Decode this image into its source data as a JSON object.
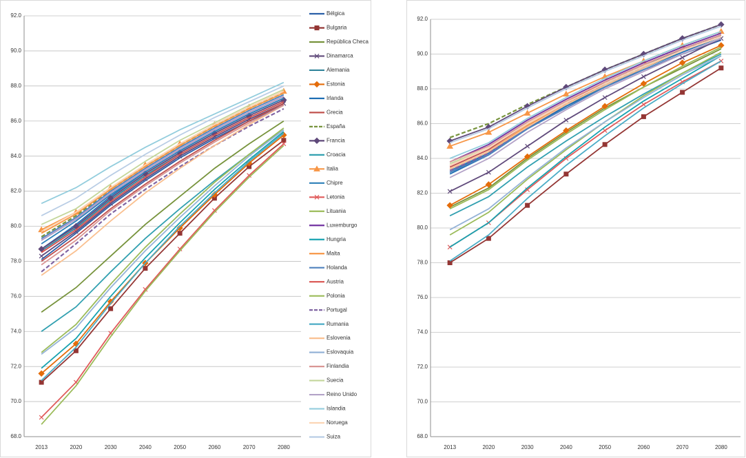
{
  "chart_data": [
    {
      "type": "line",
      "legend": "right",
      "grid": true,
      "categories": [
        "2013",
        "2020",
        "2030",
        "2040",
        "2050",
        "2060",
        "2070",
        "2080"
      ],
      "ylim": [
        68,
        92
      ],
      "yticks": [
        {
          "value": 68,
          "label": "68.0"
        },
        {
          "value": 70,
          "label": "70.0"
        },
        {
          "value": 72,
          "label": "72.0"
        },
        {
          "value": 74,
          "label": "74.0"
        },
        {
          "value": 76,
          "label": "76.0"
        },
        {
          "value": 78,
          "label": "78.0"
        },
        {
          "value": 80,
          "label": "80.0"
        },
        {
          "value": 82,
          "label": "82.0"
        },
        {
          "value": 84,
          "label": "84.0"
        },
        {
          "value": 86,
          "label": "86.0"
        },
        {
          "value": 88,
          "label": "88.0"
        },
        {
          "value": 90,
          "label": "90.0"
        },
        {
          "value": 92,
          "label": "92.0"
        }
      ],
      "series": [
        {
          "name": "Bélgica",
          "color": "#2a5fa8",
          "values": [
            78.1,
            79.6,
            81.2,
            82.6,
            83.9,
            85.0,
            86.0,
            86.9
          ]
        },
        {
          "name": "Bulgaria",
          "color": "#943634",
          "marker": "square",
          "values": [
            71.1,
            72.9,
            75.3,
            77.6,
            79.6,
            81.6,
            83.4,
            84.9
          ]
        },
        {
          "name": "República Checa",
          "color": "#77933c",
          "values": [
            75.1,
            76.5,
            78.3,
            80.1,
            81.7,
            83.3,
            84.7,
            86.0
          ]
        },
        {
          "name": "Dinamarca",
          "color": "#604a7b",
          "marker": "x",
          "values": [
            78.3,
            79.7,
            81.3,
            82.7,
            84.0,
            85.1,
            86.1,
            87.0
          ]
        },
        {
          "name": "Alemania",
          "color": "#31849b",
          "values": [
            78.6,
            79.9,
            81.5,
            82.9,
            84.1,
            85.2,
            86.2,
            87.1
          ]
        },
        {
          "name": "Estonia",
          "color": "#e46c0a",
          "marker": "diamond",
          "values": [
            71.6,
            73.3,
            75.7,
            77.9,
            79.9,
            81.8,
            83.6,
            85.2
          ]
        },
        {
          "name": "Irlanda",
          "color": "#1f6fb4",
          "values": [
            78.7,
            80.1,
            81.7,
            83.1,
            84.3,
            85.4,
            86.4,
            87.3
          ]
        },
        {
          "name": "Grecia",
          "color": "#c0504d",
          "values": [
            78.0,
            79.4,
            81.0,
            82.4,
            83.7,
            84.9,
            86.0,
            87.0
          ]
        },
        {
          "name": "España",
          "color": "#77933c",
          "dash": true,
          "values": [
            79.4,
            80.6,
            82.1,
            83.4,
            84.6,
            85.7,
            86.7,
            87.6
          ]
        },
        {
          "name": "Francia",
          "color": "#5f497a",
          "marker": "diamond",
          "values": [
            78.7,
            80.0,
            81.6,
            83.0,
            84.2,
            85.3,
            86.3,
            87.2
          ]
        },
        {
          "name": "Croacia",
          "color": "#31a0b0",
          "values": [
            74.0,
            75.4,
            77.4,
            79.3,
            81.0,
            82.6,
            84.1,
            85.5
          ]
        },
        {
          "name": "Italia",
          "color": "#f79646",
          "marker": "triangle",
          "values": [
            79.8,
            80.8,
            82.2,
            83.5,
            84.7,
            85.8,
            86.8,
            87.7
          ]
        },
        {
          "name": "Chipre",
          "color": "#2c7fb8",
          "values": [
            79.0,
            80.3,
            81.8,
            83.1,
            84.3,
            85.4,
            86.4,
            87.3
          ]
        },
        {
          "name": "Letonia",
          "color": "#e05a5a",
          "marker": "x",
          "values": [
            69.1,
            71.1,
            73.9,
            76.4,
            78.7,
            80.9,
            82.9,
            84.7
          ]
        },
        {
          "name": "Lituania",
          "color": "#9bbb59",
          "values": [
            68.7,
            70.9,
            73.7,
            76.3,
            78.6,
            80.8,
            82.8,
            84.6
          ]
        },
        {
          "name": "Luxemburgo",
          "color": "#7030a0",
          "values": [
            79.2,
            80.4,
            81.9,
            83.2,
            84.4,
            85.5,
            86.5,
            87.4
          ]
        },
        {
          "name": "Hungria",
          "color": "#17a2b0",
          "values": [
            71.9,
            73.6,
            76.0,
            78.2,
            80.2,
            82.1,
            83.8,
            85.4
          ]
        },
        {
          "name": "Malta",
          "color": "#f79646",
          "values": [
            79.6,
            80.7,
            82.1,
            83.4,
            84.6,
            85.7,
            86.7,
            87.6
          ]
        },
        {
          "name": "Holanda",
          "color": "#4f81bd",
          "values": [
            79.3,
            80.5,
            82.0,
            83.3,
            84.5,
            85.6,
            86.6,
            87.5
          ]
        },
        {
          "name": "Austria",
          "color": "#d9534f",
          "values": [
            78.5,
            79.8,
            81.4,
            82.8,
            84.1,
            85.2,
            86.2,
            87.1
          ]
        },
        {
          "name": "Polonia",
          "color": "#9bbb59",
          "values": [
            72.8,
            74.4,
            76.7,
            78.8,
            80.7,
            82.5,
            84.1,
            85.6
          ]
        },
        {
          "name": "Portugal",
          "color": "#8064a2",
          "dash": true,
          "values": [
            77.4,
            79.0,
            80.7,
            82.1,
            83.4,
            84.6,
            85.7,
            86.7
          ]
        },
        {
          "name": "Rumania",
          "color": "#4bacc6",
          "values": [
            71.2,
            73.1,
            75.6,
            77.9,
            80.0,
            81.9,
            83.7,
            85.3
          ]
        },
        {
          "name": "Eslovenia",
          "color": "#fac090",
          "values": [
            77.2,
            78.6,
            80.3,
            81.9,
            83.3,
            84.6,
            85.8,
            86.9
          ]
        },
        {
          "name": "Eslovaquia",
          "color": "#95b3d7",
          "values": [
            72.7,
            74.2,
            76.5,
            78.6,
            80.5,
            82.3,
            84.0,
            85.5
          ]
        },
        {
          "name": "Finlandia",
          "color": "#d99694",
          "values": [
            77.8,
            79.2,
            80.9,
            82.3,
            83.6,
            84.8,
            85.9,
            86.9
          ]
        },
        {
          "name": "Suecia",
          "color": "#c3d69b",
          "values": [
            80.1,
            81.0,
            82.4,
            83.7,
            84.9,
            85.9,
            86.9,
            87.8
          ]
        },
        {
          "name": "Reino Unido",
          "color": "#b3a2c7",
          "values": [
            79.2,
            80.4,
            81.9,
            83.2,
            84.4,
            85.5,
            86.5,
            87.4
          ]
        },
        {
          "name": "Islandia",
          "color": "#93cddd",
          "values": [
            81.3,
            82.2,
            83.4,
            84.5,
            85.5,
            86.4,
            87.3,
            88.2
          ]
        },
        {
          "name": "Noruega",
          "color": "#fcd5b5",
          "values": [
            79.7,
            80.8,
            82.2,
            83.5,
            84.7,
            85.8,
            86.8,
            87.7
          ]
        },
        {
          "name": "Suiza",
          "color": "#b9cde5",
          "values": [
            80.6,
            81.6,
            82.9,
            84.1,
            85.2,
            86.2,
            87.1,
            88.0
          ]
        }
      ]
    },
    {
      "type": "line",
      "grid": true,
      "categories": [
        "2013",
        "2020",
        "2030",
        "2040",
        "2050",
        "2060",
        "2070",
        "2080"
      ],
      "ylim": [
        68,
        92
      ],
      "yticks": [
        {
          "value": 68,
          "label": "68.0"
        },
        {
          "value": 70,
          "label": "70.0"
        },
        {
          "value": 72,
          "label": "72.0"
        },
        {
          "value": 74,
          "label": "74.0"
        },
        {
          "value": 76,
          "label": "76.0"
        },
        {
          "value": 78,
          "label": "78.0"
        },
        {
          "value": 80,
          "label": "80.0"
        },
        {
          "value": 82,
          "label": "82.0"
        },
        {
          "value": 84,
          "label": "84.0"
        },
        {
          "value": 86,
          "label": "86.0"
        },
        {
          "value": 88,
          "label": "88.0"
        },
        {
          "value": 90,
          "label": "90.0"
        },
        {
          "value": 92,
          "label": "92.0"
        }
      ],
      "series": [
        {
          "color": "#2a5fa8",
          "values": [
            83.2,
            84.3,
            85.8,
            87.0,
            88.1,
            89.1,
            90.0,
            90.8
          ]
        },
        {
          "color": "#943634",
          "marker": "square",
          "values": [
            78.0,
            79.4,
            81.3,
            83.1,
            84.8,
            86.4,
            87.8,
            89.2
          ]
        },
        {
          "color": "#77933c",
          "values": [
            81.2,
            82.3,
            84.0,
            85.5,
            86.9,
            88.1,
            89.2,
            90.3
          ]
        },
        {
          "color": "#604a7b",
          "marker": "x",
          "values": [
            82.1,
            83.2,
            84.7,
            86.2,
            87.5,
            88.7,
            89.8,
            90.9
          ]
        },
        {
          "color": "#31849b",
          "values": [
            83.2,
            84.2,
            85.7,
            87.0,
            88.2,
            89.2,
            90.2,
            91.0
          ]
        },
        {
          "color": "#e46c0a",
          "marker": "diamond",
          "values": [
            81.3,
            82.5,
            84.1,
            85.6,
            87.0,
            88.3,
            89.5,
            90.5
          ]
        },
        {
          "color": "#1f6fb4",
          "values": [
            83.1,
            84.2,
            85.7,
            87.0,
            88.1,
            89.2,
            90.1,
            91.0
          ]
        },
        {
          "color": "#c0504d",
          "values": [
            83.5,
            84.5,
            86.0,
            87.2,
            88.3,
            89.3,
            90.2,
            91.0
          ]
        },
        {
          "color": "#77933c",
          "dash": true,
          "values": [
            85.2,
            86.0,
            87.1,
            88.1,
            89.1,
            90.0,
            90.9,
            91.7
          ]
        },
        {
          "color": "#5f497a",
          "marker": "diamond",
          "values": [
            85.0,
            85.8,
            87.0,
            88.1,
            89.1,
            90.0,
            90.9,
            91.7
          ]
        },
        {
          "color": "#31a0b0",
          "values": [
            80.7,
            81.8,
            83.5,
            85.0,
            86.4,
            87.7,
            88.9,
            90.0
          ]
        },
        {
          "color": "#f79646",
          "marker": "triangle",
          "values": [
            84.7,
            85.5,
            86.6,
            87.7,
            88.7,
            89.6,
            90.5,
            91.3
          ]
        },
        {
          "color": "#2c7fb8",
          "values": [
            83.3,
            84.3,
            85.8,
            87.1,
            88.3,
            89.3,
            90.3,
            91.1
          ]
        },
        {
          "color": "#e05a5a",
          "marker": "x",
          "values": [
            78.9,
            80.3,
            82.2,
            84.0,
            85.6,
            87.1,
            88.4,
            89.6
          ]
        },
        {
          "color": "#9bbb59",
          "values": [
            79.6,
            80.9,
            82.8,
            84.5,
            86.1,
            87.6,
            88.9,
            90.1
          ]
        },
        {
          "color": "#7030a0",
          "values": [
            83.8,
            84.8,
            86.2,
            87.4,
            88.5,
            89.5,
            90.4,
            91.2
          ]
        },
        {
          "color": "#17a2b0",
          "values": [
            78.9,
            80.3,
            82.3,
            84.1,
            85.8,
            87.3,
            88.6,
            89.9
          ]
        },
        {
          "color": "#f79646",
          "values": [
            83.4,
            84.4,
            85.9,
            87.1,
            88.3,
            89.3,
            90.2,
            91.0
          ]
        },
        {
          "color": "#4f81bd",
          "values": [
            83.2,
            84.2,
            85.7,
            86.9,
            88.1,
            89.1,
            90.0,
            90.9
          ]
        },
        {
          "color": "#d9534f",
          "values": [
            83.6,
            84.6,
            86.0,
            87.2,
            88.4,
            89.4,
            90.3,
            91.1
          ]
        },
        {
          "color": "#9bbb59",
          "values": [
            81.1,
            82.2,
            83.9,
            85.4,
            86.8,
            88.1,
            89.3,
            90.4
          ]
        },
        {
          "color": "#8064a2",
          "dash": true,
          "values": [
            83.3,
            84.3,
            85.8,
            87.1,
            88.3,
            89.3,
            90.2,
            91.0
          ]
        },
        {
          "color": "#4bacc6",
          "values": [
            78.1,
            79.6,
            81.7,
            83.6,
            85.3,
            86.9,
            88.3,
            89.6
          ]
        },
        {
          "color": "#fac090",
          "values": [
            83.4,
            84.4,
            85.8,
            87.1,
            88.2,
            89.2,
            90.2,
            91.0
          ]
        },
        {
          "color": "#95b3d7",
          "values": [
            79.9,
            81.1,
            82.9,
            84.6,
            86.1,
            87.5,
            88.8,
            89.9
          ]
        },
        {
          "color": "#d99694",
          "values": [
            83.8,
            84.7,
            86.1,
            87.3,
            88.4,
            89.4,
            90.3,
            91.1
          ]
        },
        {
          "color": "#c3d69b",
          "values": [
            83.7,
            84.6,
            86.0,
            87.2,
            88.3,
            89.3,
            90.2,
            91.0
          ]
        },
        {
          "color": "#b3a2c7",
          "values": [
            82.9,
            84.0,
            85.5,
            86.8,
            88.0,
            89.0,
            90.0,
            90.9
          ]
        },
        {
          "color": "#93cddd",
          "values": [
            84.0,
            84.9,
            86.3,
            87.5,
            88.6,
            89.6,
            90.5,
            91.3
          ]
        },
        {
          "color": "#fcd5b5",
          "values": [
            83.6,
            84.6,
            86.0,
            87.2,
            88.3,
            89.3,
            90.2,
            91.0
          ]
        },
        {
          "color": "#b9cde5",
          "values": [
            84.9,
            85.7,
            86.9,
            88.0,
            89.0,
            89.9,
            90.8,
            91.6
          ]
        }
      ]
    }
  ]
}
